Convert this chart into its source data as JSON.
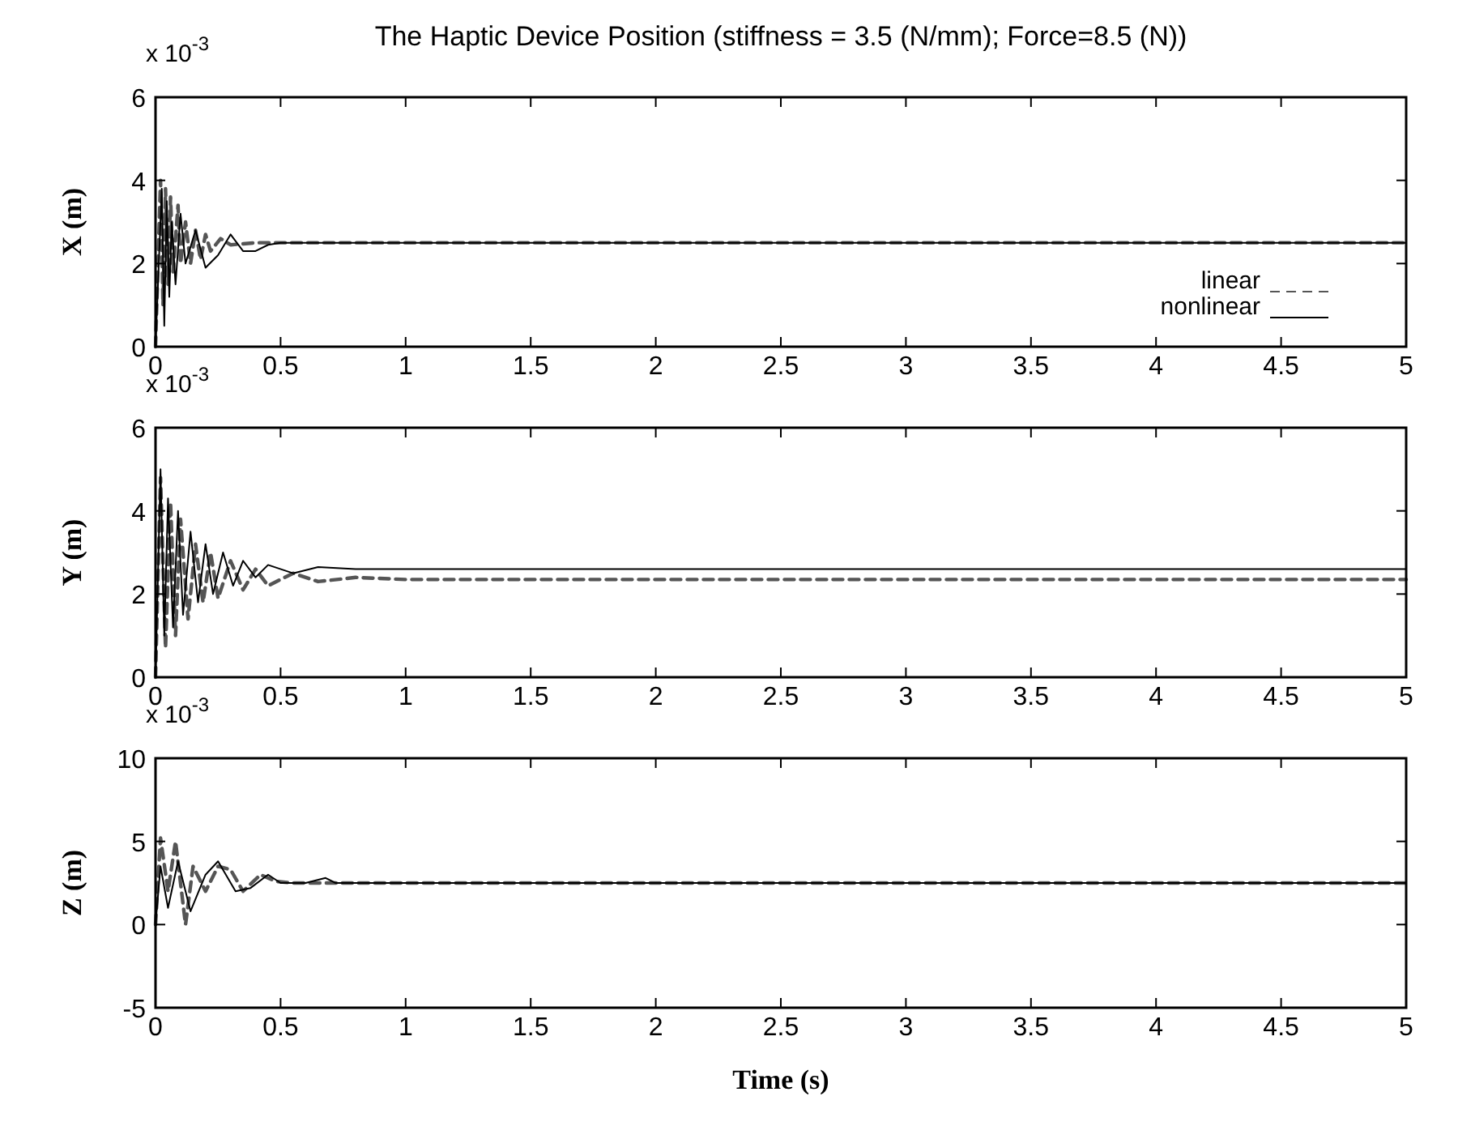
{
  "chart_data": [
    {
      "type": "line",
      "title": "The Haptic Device Position (stiffness = 3.5 (N/mm); Force=8.5 (N))",
      "ylabel": "X (m)",
      "annotations": [
        "x 10$^{-3}$"
      ],
      "xlim": [
        0,
        5
      ],
      "xticks": [
        0,
        0.5,
        1,
        1.5,
        2,
        2.5,
        3,
        3.5,
        4,
        4.5,
        5
      ],
      "ylim": [
        0,
        6
      ],
      "yticks": [
        0,
        2,
        4,
        6
      ],
      "legend": "bottom right",
      "series": [
        {
          "name": "linear",
          "color": "#555555",
          "line_style": "dashed",
          "x": [
            0,
            0.02,
            0.03,
            0.04,
            0.05,
            0.06,
            0.07,
            0.09,
            0.1,
            0.12,
            0.14,
            0.16,
            0.18,
            0.2,
            0.22,
            0.26,
            0.3,
            0.4,
            5
          ],
          "values": [
            0,
            4.0,
            1.0,
            3.8,
            1.5,
            3.6,
            1.8,
            3.4,
            2.0,
            3.0,
            2.0,
            2.8,
            2.1,
            2.7,
            2.3,
            2.6,
            2.45,
            2.5,
            2.5
          ]
        },
        {
          "name": "nonlinear",
          "color": "#000000",
          "line_style": "solid",
          "x": [
            0,
            0.025,
            0.035,
            0.045,
            0.055,
            0.065,
            0.08,
            0.1,
            0.12,
            0.16,
            0.2,
            0.25,
            0.3,
            0.35,
            0.4,
            0.45,
            0.5,
            5
          ],
          "values": [
            0,
            3.8,
            0.5,
            3.5,
            1.2,
            3.0,
            1.5,
            3.2,
            2.0,
            2.8,
            1.9,
            2.2,
            2.7,
            2.3,
            2.3,
            2.45,
            2.5,
            2.5
          ]
        }
      ]
    },
    {
      "type": "line",
      "ylabel": "Y (m)",
      "annotations": [
        "x 10$^{-3}$"
      ],
      "xlim": [
        0,
        5
      ],
      "xticks": [
        0,
        0.5,
        1,
        1.5,
        2,
        2.5,
        3,
        3.5,
        4,
        4.5,
        5
      ],
      "ylim": [
        0,
        6
      ],
      "yticks": [
        0,
        2,
        4,
        6
      ],
      "series": [
        {
          "color": "#555555",
          "line_style": "dashed",
          "x": [
            0,
            0.02,
            0.04,
            0.06,
            0.08,
            0.1,
            0.13,
            0.16,
            0.19,
            0.22,
            0.25,
            0.3,
            0.35,
            0.4,
            0.45,
            0.55,
            0.65,
            0.8,
            1,
            5
          ],
          "values": [
            0,
            4.8,
            0.7,
            4.2,
            1.0,
            3.8,
            1.4,
            3.2,
            1.8,
            3.0,
            1.9,
            2.8,
            2.1,
            2.6,
            2.2,
            2.5,
            2.3,
            2.4,
            2.35,
            2.35
          ]
        },
        {
          "color": "#000000",
          "line_style": "solid",
          "x": [
            0,
            0.02,
            0.035,
            0.05,
            0.07,
            0.09,
            0.11,
            0.14,
            0.17,
            0.2,
            0.23,
            0.27,
            0.31,
            0.35,
            0.4,
            0.45,
            0.55,
            0.65,
            0.8,
            5
          ],
          "values": [
            0,
            5.0,
            1.0,
            4.3,
            1.2,
            4.0,
            1.5,
            3.5,
            1.8,
            3.2,
            2.0,
            3.0,
            2.2,
            2.8,
            2.4,
            2.7,
            2.5,
            2.65,
            2.6,
            2.6
          ]
        }
      ]
    },
    {
      "type": "line",
      "ylabel": "Z (m)",
      "xlabel": "Time (s)",
      "annotations": [
        "x 10$^{-3}$"
      ],
      "xlim": [
        0,
        5
      ],
      "xticks": [
        0,
        0.5,
        1,
        1.5,
        2,
        2.5,
        3,
        3.5,
        4,
        4.5,
        5
      ],
      "ylim": [
        -5,
        10
      ],
      "yticks": [
        -5,
        0,
        5,
        10
      ],
      "series": [
        {
          "color": "#555555",
          "line_style": "dashed",
          "x": [
            0,
            0.02,
            0.05,
            0.08,
            0.12,
            0.15,
            0.2,
            0.25,
            0.3,
            0.35,
            0.42,
            0.48,
            0.55,
            5
          ],
          "values": [
            0,
            5.2,
            2.0,
            5.0,
            0,
            3.5,
            2.0,
            3.5,
            3.3,
            2.0,
            3.0,
            2.6,
            2.5,
            2.5
          ]
        },
        {
          "color": "#000000",
          "line_style": "solid",
          "x": [
            0,
            0.02,
            0.05,
            0.09,
            0.14,
            0.2,
            0.25,
            0.32,
            0.38,
            0.45,
            0.5,
            0.6,
            0.68,
            0.72,
            5
          ],
          "values": [
            0,
            3.5,
            1.0,
            3.8,
            0.8,
            3.0,
            3.8,
            2.0,
            2.2,
            3.0,
            2.5,
            2.5,
            2.8,
            2.5,
            2.5
          ]
        }
      ]
    }
  ]
}
